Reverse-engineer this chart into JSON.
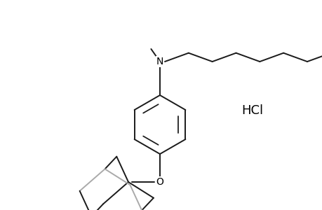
{
  "background_color": "#ffffff",
  "line_color": "#1a1a1a",
  "line_width": 1.4,
  "text_color": "#000000",
  "hcl_label": "HCl",
  "hcl_fontsize": 13,
  "fig_w": 4.6,
  "fig_h": 3.0,
  "dpi": 100
}
